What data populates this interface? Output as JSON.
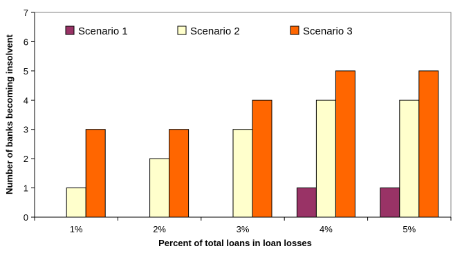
{
  "chart_data": {
    "type": "bar",
    "categories": [
      "1%",
      "2%",
      "3%",
      "4%",
      "5%"
    ],
    "series": [
      {
        "name": "Scenario 1",
        "values": [
          0,
          0,
          0,
          1,
          1
        ],
        "color": "#993366"
      },
      {
        "name": "Scenario 2",
        "values": [
          1,
          2,
          3,
          4,
          4
        ],
        "color": "#FFFFCC"
      },
      {
        "name": "Scenario 3",
        "values": [
          3,
          3,
          4,
          5,
          5
        ],
        "color": "#FF6600"
      }
    ],
    "title": "",
    "xlabel": "Percent of total loans in loan losses",
    "ylabel": "Number of banks becoming insolvent",
    "ylim": [
      0,
      7
    ],
    "yticks": [
      0,
      1,
      2,
      3,
      4,
      5,
      6,
      7
    ],
    "grid": false,
    "legend": "top"
  }
}
